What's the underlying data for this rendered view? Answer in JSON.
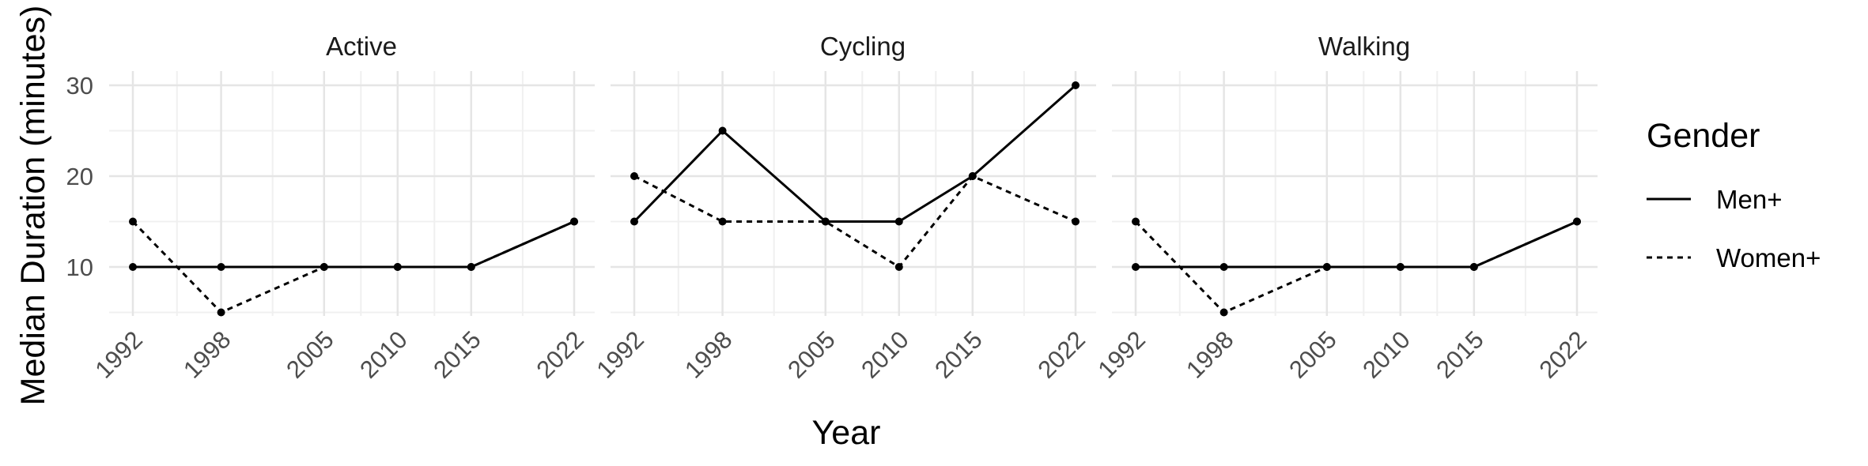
{
  "chart_data": {
    "type": "line",
    "xlabel": "Year",
    "ylabel": "Median Duration (minutes)",
    "x": [
      1992,
      1998,
      2005,
      2010,
      2015,
      2022
    ],
    "x_tick_labels": [
      "1992",
      "1998",
      "2005",
      "2010",
      "2015",
      "2022"
    ],
    "y_ticks": [
      10,
      20,
      30
    ],
    "xlim": [
      1991,
      2023
    ],
    "ylim": [
      5,
      30
    ],
    "grid": true,
    "legend": {
      "title": "Gender",
      "placement": "right",
      "entries": [
        {
          "name": "Men+",
          "line": "solid"
        },
        {
          "name": "Women+",
          "line": "dashed"
        }
      ]
    },
    "panels": [
      {
        "title": "Active",
        "series": [
          {
            "name": "Men+",
            "values": [
              10,
              10,
              10,
              10,
              10,
              15
            ]
          },
          {
            "name": "Women+",
            "values": [
              15,
              5,
              10,
              10,
              10,
              15
            ]
          }
        ]
      },
      {
        "title": "Cycling",
        "series": [
          {
            "name": "Men+",
            "values": [
              15,
              25,
              15,
              15,
              20,
              30
            ]
          },
          {
            "name": "Women+",
            "values": [
              20,
              15,
              15,
              10,
              20,
              15
            ]
          }
        ]
      },
      {
        "title": "Walking",
        "series": [
          {
            "name": "Men+",
            "values": [
              10,
              10,
              10,
              10,
              10,
              15
            ]
          },
          {
            "name": "Women+",
            "values": [
              15,
              5,
              10,
              10,
              10,
              15
            ]
          }
        ]
      }
    ]
  }
}
